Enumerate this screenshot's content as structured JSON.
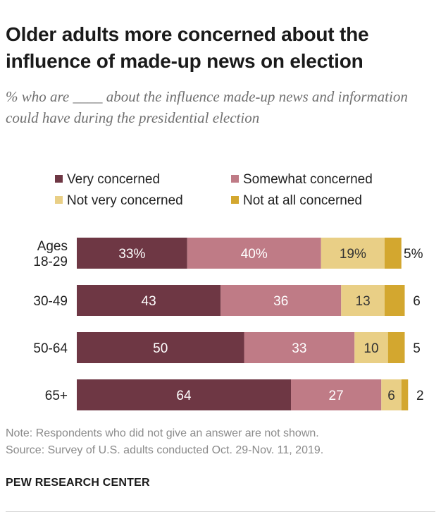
{
  "title": "Older adults more concerned about the influence of made-up news on election",
  "subtitle": "% who are ____ about the influence made-up news and information could have during the presidential election",
  "note": "Note: Respondents who did not give an answer are not shown.",
  "source": "Source: Survey of U.S. adults conducted Oct. 29-Nov. 11, 2019.",
  "brand": "PEW RESEARCH CENTER",
  "colors": {
    "very": "#6e3744",
    "somewhat": "#bf7b86",
    "not_very": "#e9cf86",
    "not_at_all": "#d3a72f",
    "label_light": "#ffffff",
    "label_dark": "#333333"
  },
  "chart_data": {
    "type": "bar",
    "orientation": "horizontal",
    "stacked": true,
    "title": "Older adults more concerned about the influence of made-up news on election",
    "categories": [
      "Ages 18-29",
      "30-49",
      "50-64",
      "65+"
    ],
    "category_labels": [
      [
        "Ages",
        "18-29"
      ],
      [
        "30-49"
      ],
      [
        "50-64"
      ],
      [
        "65+"
      ]
    ],
    "series": [
      {
        "name": "Very concerned",
        "values": [
          33,
          43,
          50,
          64
        ],
        "labels": [
          "33%",
          "43",
          "50",
          "64"
        ]
      },
      {
        "name": "Somewhat concerned",
        "values": [
          40,
          36,
          33,
          27
        ],
        "labels": [
          "40%",
          "36",
          "33",
          "27"
        ]
      },
      {
        "name": "Not very concerned",
        "values": [
          19,
          13,
          10,
          6
        ],
        "labels": [
          "19%",
          "13",
          "10",
          "6"
        ]
      },
      {
        "name": "Not at all concerned",
        "values": [
          5,
          6,
          5,
          2
        ],
        "labels": [
          "5%",
          "6",
          "5",
          "2"
        ]
      }
    ],
    "legend_position": "top",
    "xlim": [
      0,
      100
    ],
    "grid": false
  }
}
